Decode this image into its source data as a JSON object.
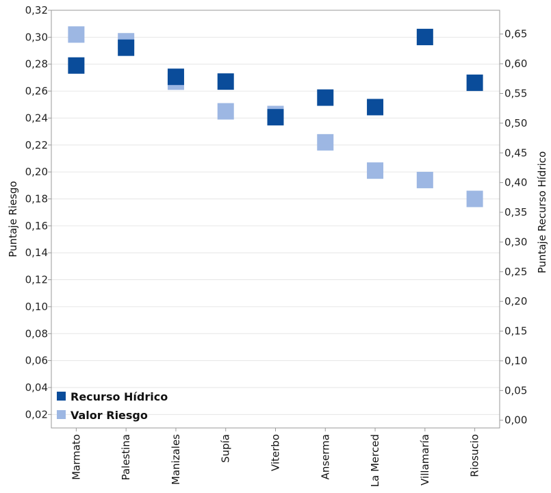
{
  "chart_data": {
    "type": "scatter",
    "categories": [
      "Marmato",
      "Palestina",
      "Manizales",
      "Supía",
      "Viterbo",
      "Anserma",
      "La Merced",
      "Villamaría",
      "Riosucio"
    ],
    "series": [
      {
        "name": "Valor Riesgo",
        "axis": "left",
        "color": "#9db7e3",
        "values": [
          0.302,
          0.297,
          0.267,
          0.245,
          0.243,
          0.222,
          0.201,
          0.194,
          0.18
        ]
      },
      {
        "name": "Recurso Hídrico",
        "axis": "right",
        "color": "#0a4c9a",
        "values": [
          0.597,
          0.627,
          0.578,
          0.57,
          0.51,
          0.543,
          0.527,
          0.645,
          0.568
        ]
      }
    ],
    "y_left": {
      "label": "Puntaje Riesgo",
      "lim": [
        0.01,
        0.32
      ],
      "ticks": [
        "0,02",
        "0,04",
        "0,06",
        "0,08",
        "0,10",
        "0,12",
        "0,14",
        "0,16",
        "0,18",
        "0,20",
        "0,22",
        "0,24",
        "0,26",
        "0,28",
        "0,30",
        "0,32"
      ],
      "tick_values": [
        0.02,
        0.04,
        0.06,
        0.08,
        0.1,
        0.12,
        0.14,
        0.16,
        0.18,
        0.2,
        0.22,
        0.24,
        0.26,
        0.28,
        0.3,
        0.32
      ]
    },
    "y_right": {
      "label": "Puntaje Recurso Hídrico",
      "lim": [
        -0.013,
        0.69
      ],
      "ticks": [
        "0,00",
        "0,05",
        "0,10",
        "0,15",
        "0,20",
        "0,25",
        "0,30",
        "0,35",
        "0,40",
        "0,45",
        "0,50",
        "0,55",
        "0,60",
        "0,65"
      ],
      "tick_values": [
        0.0,
        0.05,
        0.1,
        0.15,
        0.2,
        0.25,
        0.3,
        0.35,
        0.4,
        0.45,
        0.5,
        0.55,
        0.6,
        0.65
      ]
    },
    "legend": {
      "position": "bottom-left",
      "entries": [
        {
          "label": "Recurso Hídrico",
          "color": "#0a4c9a"
        },
        {
          "label": "Valor Riesgo",
          "color": "#9db7e3"
        }
      ]
    },
    "grid": true,
    "colors": {
      "grid": "#e6e6e6",
      "frame": "#999999"
    }
  }
}
